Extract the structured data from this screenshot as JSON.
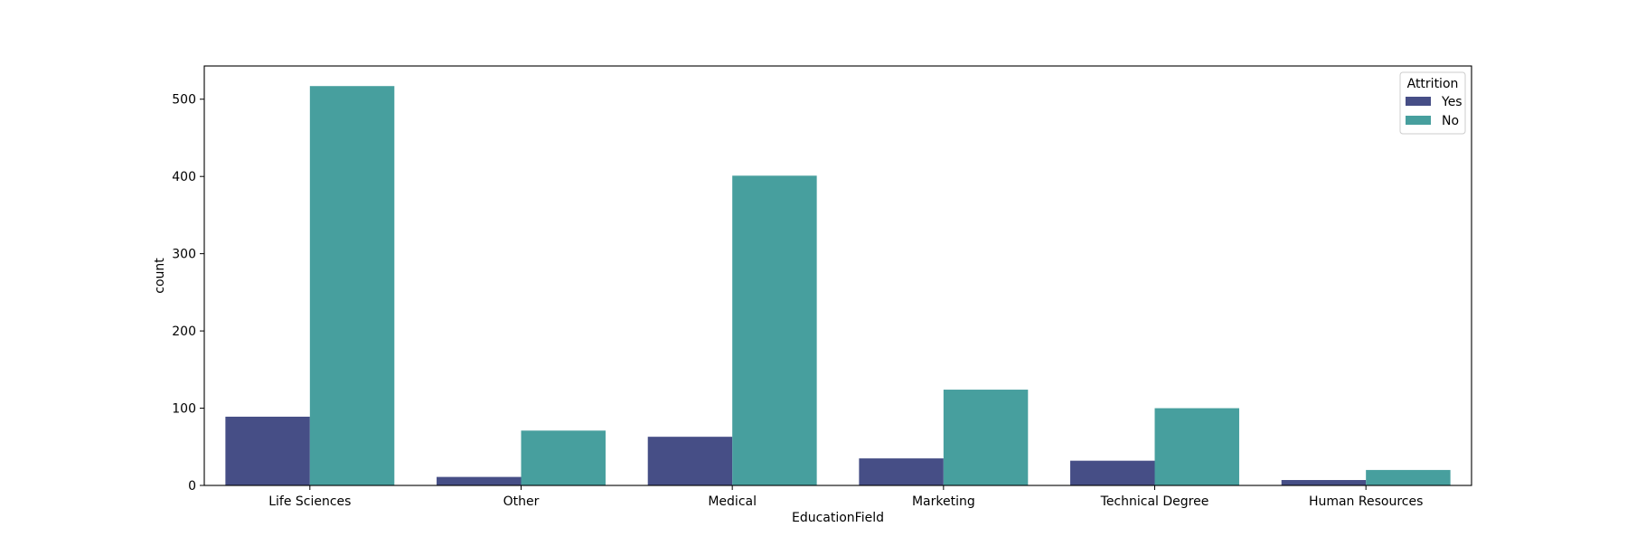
{
  "chart_data": {
    "type": "bar",
    "title": "",
    "xlabel": "EducationField",
    "ylabel": "count",
    "categories": [
      "Life Sciences",
      "Other",
      "Medical",
      "Marketing",
      "Technical Degree",
      "Human Resources"
    ],
    "series": [
      {
        "name": "Yes",
        "color": "#464e86",
        "values": [
          89,
          11,
          63,
          35,
          32,
          7
        ]
      },
      {
        "name": "No",
        "color": "#479f9e",
        "values": [
          517,
          71,
          401,
          124,
          100,
          20
        ]
      }
    ],
    "ylim": [
      0,
      543
    ],
    "yticks": [
      0,
      100,
      200,
      300,
      400,
      500
    ],
    "legend": {
      "title": "Attrition",
      "position": "top-right"
    },
    "grid": false
  }
}
